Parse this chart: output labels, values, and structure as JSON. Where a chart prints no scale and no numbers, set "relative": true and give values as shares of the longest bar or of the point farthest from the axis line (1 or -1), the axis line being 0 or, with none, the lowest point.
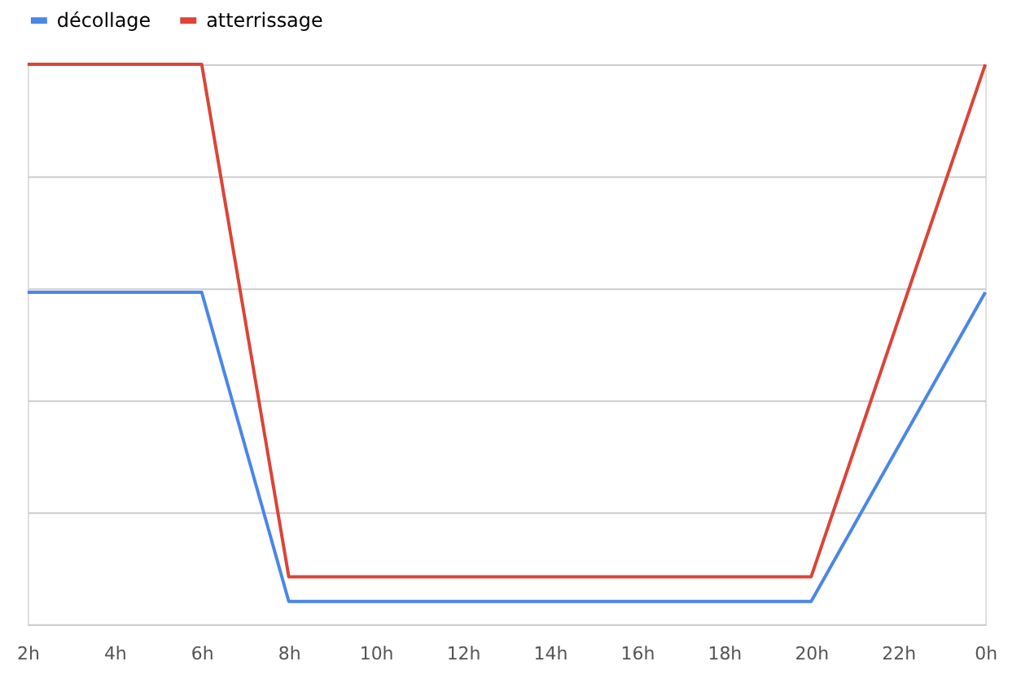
{
  "chart_data": {
    "type": "line",
    "relative": true,
    "categories": [
      "2h",
      "4h",
      "6h",
      "8h",
      "10h",
      "12h",
      "14h",
      "16h",
      "18h",
      "20h",
      "22h",
      "0h"
    ],
    "series": [
      {
        "name": "décollage",
        "color": "#4a86e8",
        "values": [
          0.593,
          0.593,
          0.593,
          0.041,
          0.041,
          0.041,
          0.041,
          0.041,
          0.041,
          0.041,
          0.317,
          0.593
        ]
      },
      {
        "name": "atterrissage",
        "color": "#db4437",
        "values": [
          1,
          1,
          1,
          0.085,
          0.085,
          0.085,
          0.085,
          0.085,
          0.085,
          0.085,
          0.543,
          1
        ]
      }
    ],
    "grid": "y",
    "legend": "top",
    "marker": "none",
    "line_style": "solid"
  }
}
